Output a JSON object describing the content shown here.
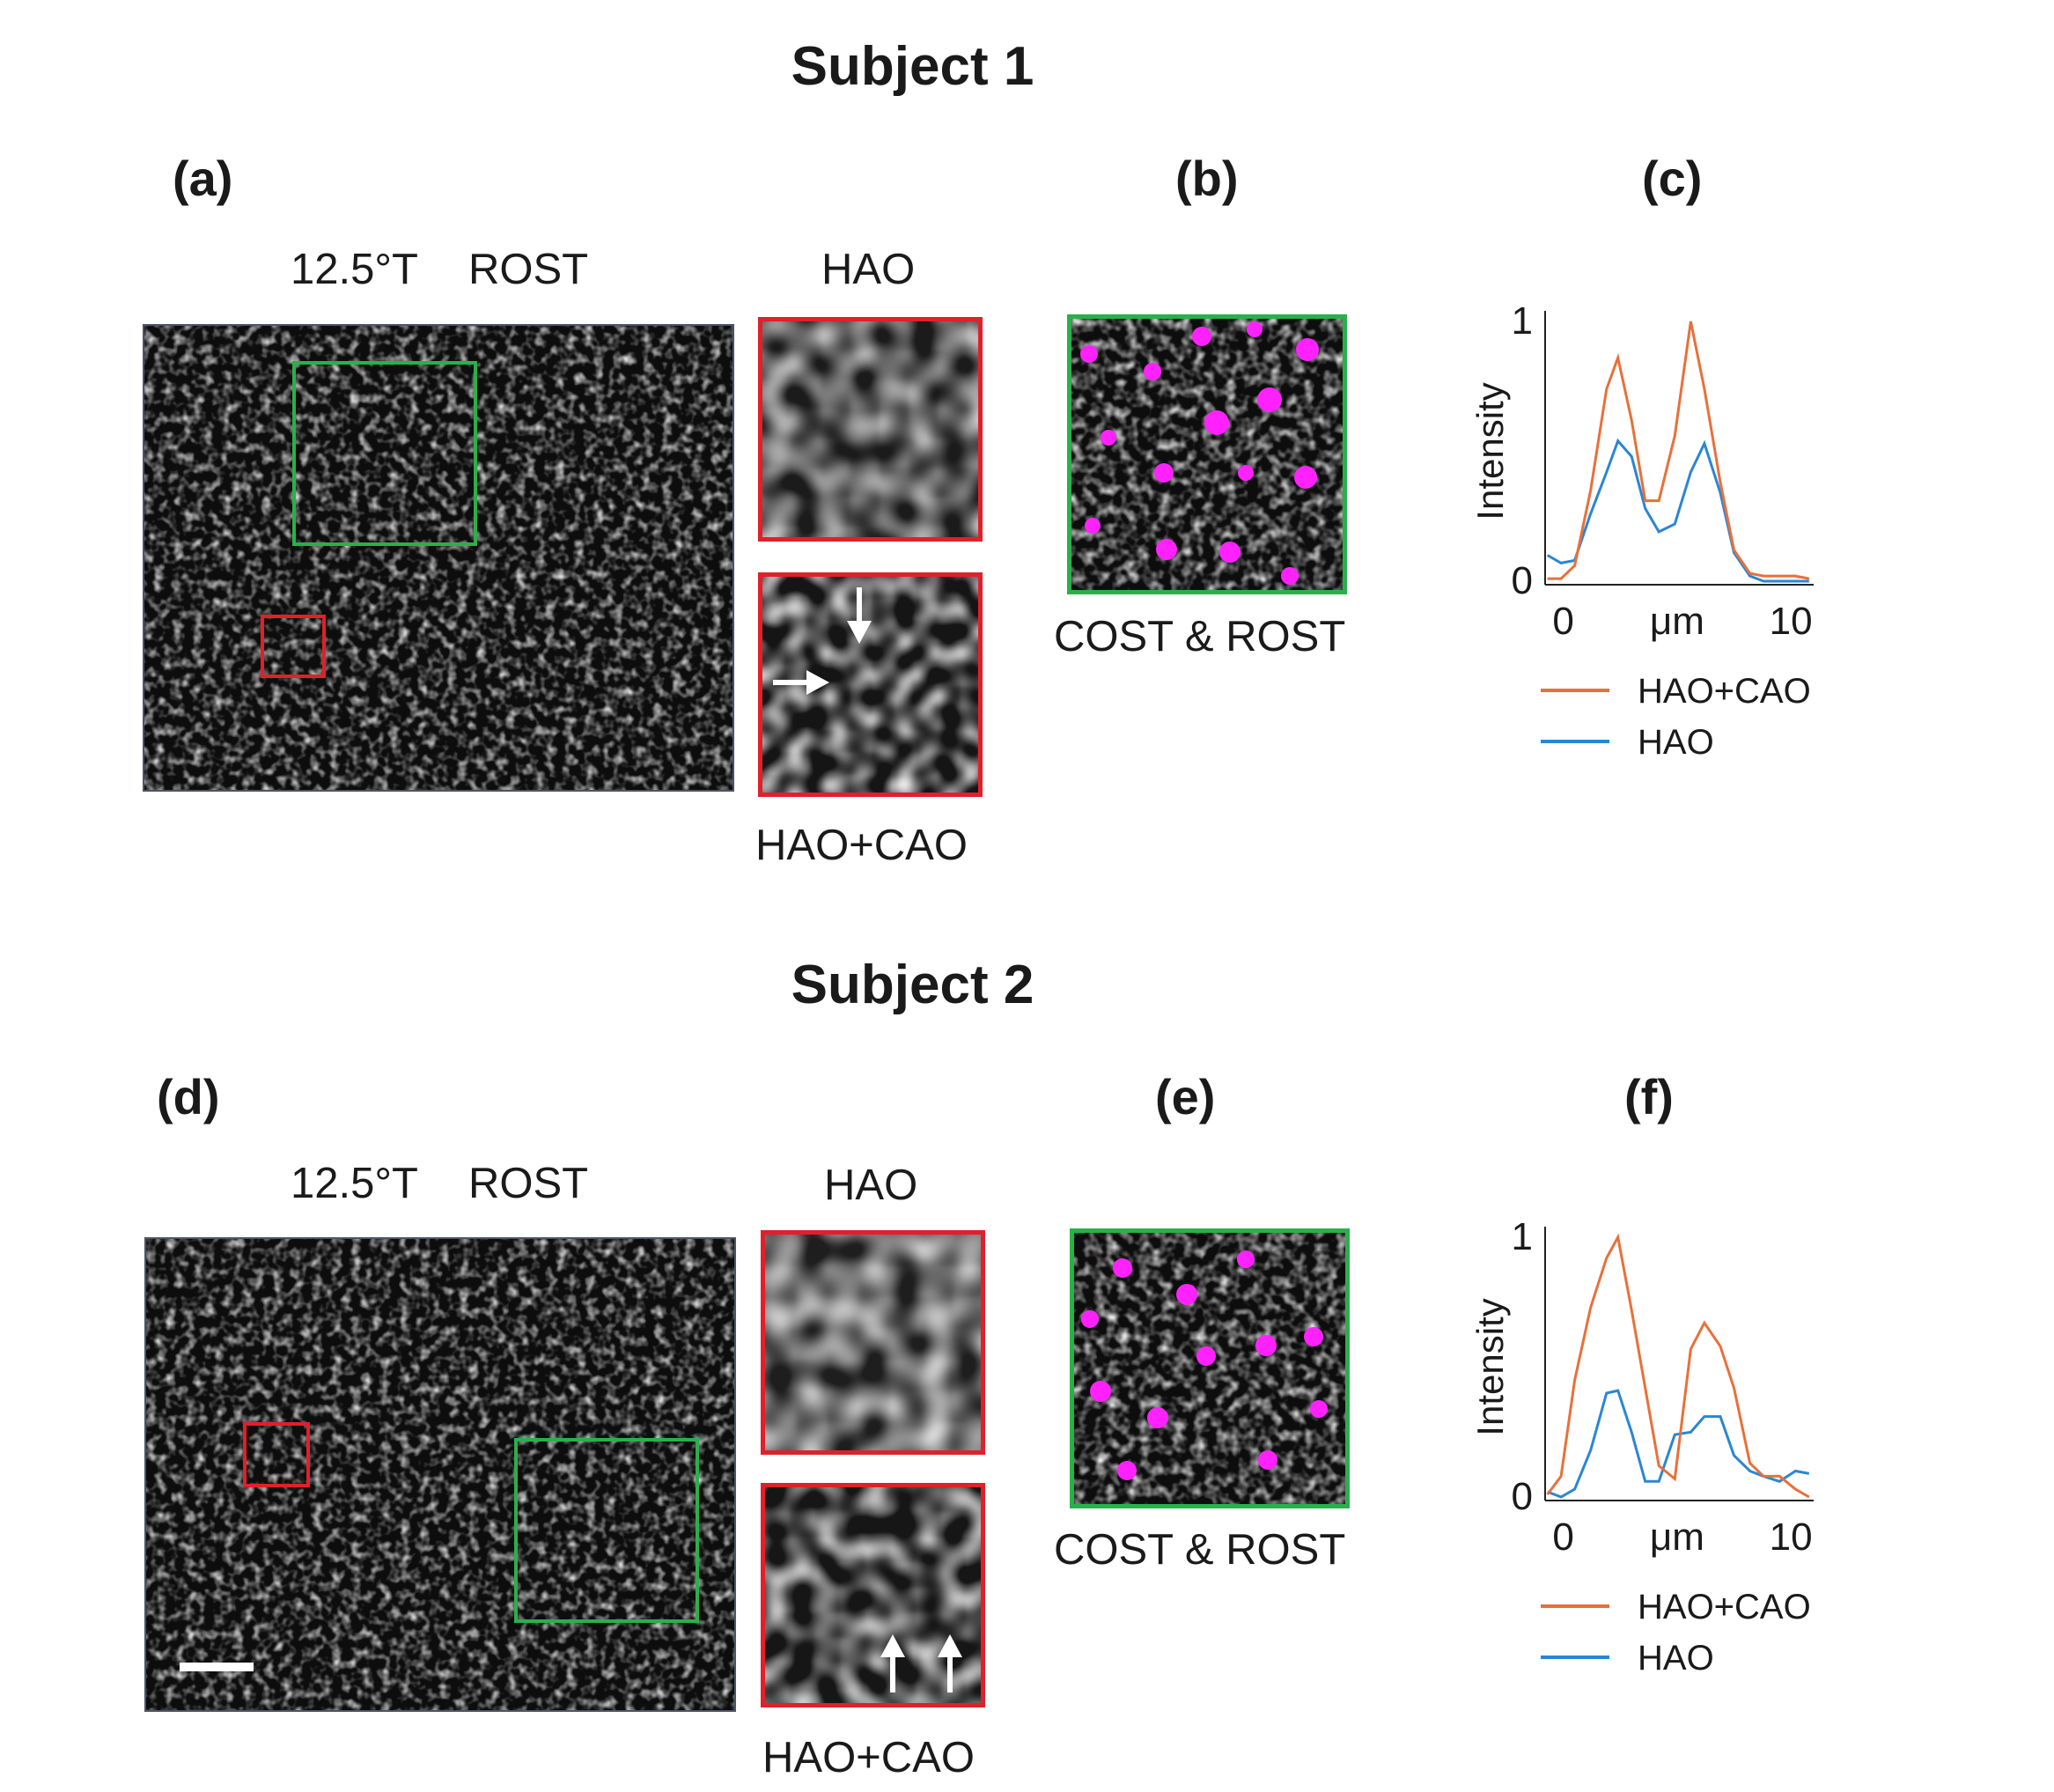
{
  "figure": {
    "subject1_title": "Subject 1",
    "subject2_title": "Subject 2",
    "panels": {
      "a": "(a)",
      "b": "(b)",
      "c": "(c)",
      "d": "(d)",
      "e": "(e)",
      "f": "(f)"
    },
    "main_label_ecc": "12.5°T",
    "main_label_layer": "ROST",
    "inset_top_label": "HAO",
    "inset_bottom_label": "HAO+CAO",
    "overlay_label": "COST & ROST",
    "colors": {
      "roi_red": "#e0202a",
      "roi_green": "#2ab04a",
      "cone_magenta": "#ff22ff",
      "line_hao_cao": "#e8703a",
      "line_hao": "#2a86d4"
    }
  },
  "chart_data": [
    {
      "type": "line",
      "panel": "(c)",
      "xlabel": "μm",
      "ylabel": "Intensity",
      "xlim": [
        0,
        10
      ],
      "ylim": [
        0,
        1
      ],
      "xticks": [
        "0",
        "10"
      ],
      "yticks": [
        "0",
        "1"
      ],
      "legend": "bottom",
      "series": [
        {
          "name": "HAO+CAO",
          "color": "#e8703a",
          "x": [
            -0.7,
            -0.1,
            0.5,
            1.2,
            1.9,
            2.4,
            3.0,
            3.6,
            4.2,
            4.9,
            5.6,
            6.2,
            6.9,
            7.5,
            8.2,
            8.8,
            9.5,
            10.2,
            10.8
          ],
          "y": [
            0.01,
            0.01,
            0.06,
            0.35,
            0.74,
            0.86,
            0.62,
            0.31,
            0.31,
            0.56,
            1.0,
            0.74,
            0.38,
            0.12,
            0.03,
            0.02,
            0.02,
            0.02,
            0.01
          ]
        },
        {
          "name": "HAO",
          "color": "#2a86d4",
          "x": [
            -0.7,
            -0.1,
            0.5,
            1.2,
            1.9,
            2.4,
            3.0,
            3.6,
            4.2,
            4.9,
            5.6,
            6.2,
            6.9,
            7.5,
            8.2,
            8.8,
            9.5,
            10.2,
            10.8
          ],
          "y": [
            0.1,
            0.07,
            0.08,
            0.26,
            0.42,
            0.54,
            0.48,
            0.28,
            0.19,
            0.22,
            0.42,
            0.53,
            0.34,
            0.11,
            0.02,
            0.0,
            0.0,
            0.0,
            0.0
          ]
        }
      ]
    },
    {
      "type": "line",
      "panel": "(f)",
      "xlabel": "μm",
      "ylabel": "Intensity",
      "xlim": [
        0,
        10
      ],
      "ylim": [
        0,
        1
      ],
      "xticks": [
        "0",
        "10"
      ],
      "yticks": [
        "0",
        "1"
      ],
      "legend": "bottom",
      "series": [
        {
          "name": "HAO+CAO",
          "color": "#e8703a",
          "x": [
            -0.7,
            -0.1,
            0.5,
            1.2,
            1.9,
            2.4,
            3.0,
            3.6,
            4.2,
            4.9,
            5.6,
            6.2,
            6.9,
            7.5,
            8.2,
            8.8,
            9.5,
            10.2,
            10.8
          ],
          "y": [
            0.01,
            0.08,
            0.45,
            0.73,
            0.92,
            1.0,
            0.72,
            0.42,
            0.12,
            0.07,
            0.57,
            0.67,
            0.58,
            0.42,
            0.13,
            0.08,
            0.08,
            0.03,
            0.0
          ]
        },
        {
          "name": "HAO",
          "color": "#2a86d4",
          "x": [
            -0.7,
            -0.1,
            0.5,
            1.2,
            1.9,
            2.4,
            3.0,
            3.6,
            4.2,
            4.9,
            5.6,
            6.2,
            6.9,
            7.5,
            8.2,
            8.8,
            9.5,
            10.2,
            10.8
          ],
          "y": [
            0.02,
            0.0,
            0.03,
            0.18,
            0.4,
            0.41,
            0.25,
            0.06,
            0.06,
            0.24,
            0.25,
            0.31,
            0.31,
            0.16,
            0.1,
            0.08,
            0.06,
            0.1,
            0.09
          ]
        }
      ]
    }
  ]
}
